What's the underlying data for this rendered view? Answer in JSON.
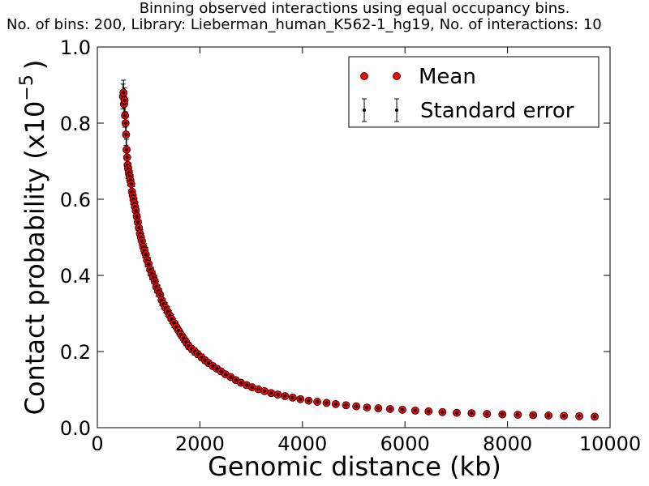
{
  "chart_data": {
    "type": "scatter",
    "title_line1": "Binning observed interactions using equal occupancy bins.",
    "title_line2": "No. of bins: 200, Library: Lieberman_human_K562-1_hg19, No. of interactions: 10",
    "xlabel": "Genomic distance (kb)",
    "ylabel": "Contact probability (x10",
    "ylabel_exp": "−5",
    "ylabel_close": ")",
    "xlim": [
      0,
      10000
    ],
    "ylim": [
      0,
      1.0
    ],
    "xticks": [
      "0",
      "2000",
      "4000",
      "6000",
      "8000",
      "10000"
    ],
    "xtick_values": [
      0,
      2000,
      4000,
      6000,
      8000,
      10000
    ],
    "yticks": [
      "0.0",
      "0.2",
      "0.4",
      "0.6",
      "0.8",
      "1.0"
    ],
    "ytick_values": [
      0,
      0.2,
      0.4,
      0.6,
      0.8,
      1.0
    ],
    "legend": {
      "placement": "top-right",
      "entries": [
        "Mean",
        "Standard error"
      ]
    },
    "colors": {
      "mean": "#ff0000",
      "error": "#000000"
    },
    "relative_se": 0.035,
    "x": [
      500,
      510,
      520,
      530,
      540,
      550,
      560,
      570,
      580,
      590,
      600,
      615,
      630,
      645,
      660,
      675,
      690,
      705,
      720,
      735,
      750,
      770,
      790,
      810,
      830,
      850,
      870,
      895,
      920,
      945,
      970,
      1000,
      1030,
      1060,
      1090,
      1120,
      1150,
      1185,
      1220,
      1255,
      1290,
      1330,
      1370,
      1410,
      1450,
      1495,
      1540,
      1585,
      1630,
      1680,
      1730,
      1780,
      1840,
      1900,
      1960,
      2030,
      2100,
      2170,
      2250,
      2330,
      2410,
      2500,
      2600,
      2700,
      2800,
      2910,
      3020,
      3140,
      3260,
      3390,
      3520,
      3660,
      3810,
      3960,
      4120,
      4290,
      4470,
      4650,
      4850,
      5050,
      5260,
      5480,
      5710,
      5950,
      6200,
      6460,
      6730,
      7010,
      7300,
      7600,
      7900,
      8200,
      8500,
      8800,
      9100,
      9400,
      9700
    ],
    "y": [
      0.87,
      0.88,
      0.85,
      0.86,
      0.82,
      0.8,
      0.77,
      0.73,
      0.71,
      0.69,
      0.68,
      0.67,
      0.66,
      0.65,
      0.64,
      0.62,
      0.61,
      0.6,
      0.59,
      0.58,
      0.57,
      0.555,
      0.54,
      0.525,
      0.51,
      0.5,
      0.49,
      0.475,
      0.465,
      0.455,
      0.44,
      0.43,
      0.415,
      0.405,
      0.395,
      0.385,
      0.37,
      0.36,
      0.35,
      0.335,
      0.325,
      0.315,
      0.305,
      0.295,
      0.285,
      0.275,
      0.265,
      0.255,
      0.245,
      0.235,
      0.225,
      0.215,
      0.207,
      0.2,
      0.193,
      0.185,
      0.177,
      0.17,
      0.162,
      0.155,
      0.148,
      0.14,
      0.133,
      0.125,
      0.118,
      0.112,
      0.106,
      0.101,
      0.096,
      0.091,
      0.087,
      0.083,
      0.079,
      0.075,
      0.071,
      0.068,
      0.065,
      0.062,
      0.059,
      0.056,
      0.053,
      0.051,
      0.049,
      0.047,
      0.045,
      0.043,
      0.041,
      0.039,
      0.038,
      0.036,
      0.035,
      0.034,
      0.033,
      0.032,
      0.031,
      0.03,
      0.029
    ]
  }
}
